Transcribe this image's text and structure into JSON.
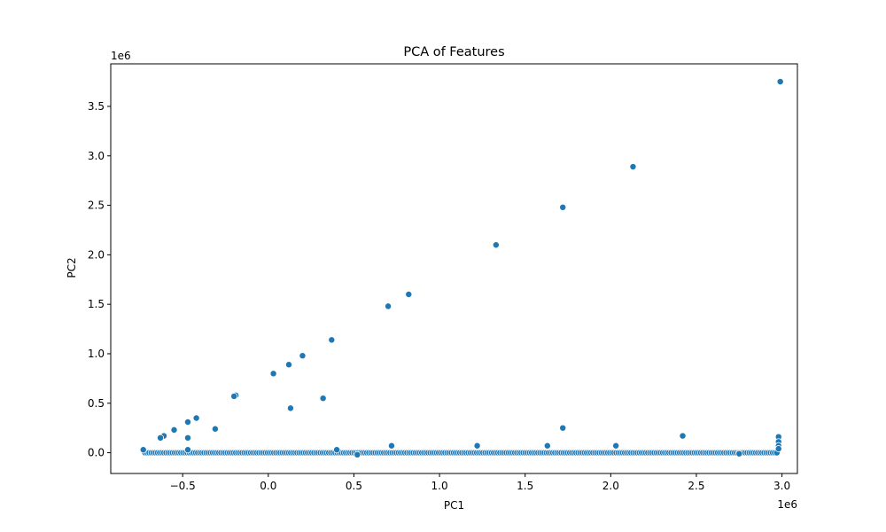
{
  "chart_data": {
    "type": "scatter",
    "title": "PCA of Features",
    "xlabel": "PC1",
    "ylabel": "PC2",
    "x_offset_text": "1e6",
    "y_offset_text": "1e6",
    "x_scale": 1000000,
    "y_scale": 1000000,
    "xlim": [
      -0.92,
      3.09
    ],
    "ylim": [
      -0.21,
      3.93
    ],
    "xticks": [
      -0.5,
      0.0,
      0.5,
      1.0,
      1.5,
      2.0,
      2.5,
      3.0
    ],
    "xtick_labels": [
      "−0.5",
      "0.0",
      "0.5",
      "1.0",
      "1.5",
      "2.0",
      "2.5",
      "3.0"
    ],
    "yticks": [
      0.0,
      0.5,
      1.0,
      1.5,
      2.0,
      2.5,
      3.0,
      3.5
    ],
    "ytick_labels": [
      "0.0",
      "0.5",
      "1.0",
      "1.5",
      "2.0",
      "2.5",
      "3.0",
      "3.5"
    ],
    "grid": false,
    "marker_color": "#1f77b4",
    "marker_edge_color": "#ffffff",
    "baseline_band": {
      "x_from": -0.72,
      "x_to": 2.97,
      "y": 0.0,
      "count": 300
    },
    "points": [
      {
        "x": 2.99,
        "y": 3.75
      },
      {
        "x": 2.13,
        "y": 2.89
      },
      {
        "x": 1.72,
        "y": 2.48
      },
      {
        "x": 1.33,
        "y": 2.1
      },
      {
        "x": 0.82,
        "y": 1.6
      },
      {
        "x": 0.7,
        "y": 1.48
      },
      {
        "x": 0.37,
        "y": 1.14
      },
      {
        "x": 0.2,
        "y": 0.98
      },
      {
        "x": 0.12,
        "y": 0.89
      },
      {
        "x": 0.03,
        "y": 0.8
      },
      {
        "x": -0.19,
        "y": 0.58
      },
      {
        "x": -0.2,
        "y": 0.57
      },
      {
        "x": -0.42,
        "y": 0.35
      },
      {
        "x": -0.47,
        "y": 0.31
      },
      {
        "x": -0.55,
        "y": 0.23
      },
      {
        "x": -0.61,
        "y": 0.17
      },
      {
        "x": -0.63,
        "y": 0.15
      },
      {
        "x": -0.31,
        "y": 0.24
      },
      {
        "x": -0.47,
        "y": 0.15
      },
      {
        "x": 0.13,
        "y": 0.45
      },
      {
        "x": 0.32,
        "y": 0.55
      },
      {
        "x": 1.72,
        "y": 0.25
      },
      {
        "x": 2.42,
        "y": 0.17
      },
      {
        "x": 2.98,
        "y": 0.16
      },
      {
        "x": 2.98,
        "y": 0.11
      },
      {
        "x": 2.98,
        "y": 0.07
      },
      {
        "x": 2.98,
        "y": 0.04
      },
      {
        "x": 1.22,
        "y": 0.07
      },
      {
        "x": 1.63,
        "y": 0.07
      },
      {
        "x": 2.03,
        "y": 0.07
      },
      {
        "x": 0.72,
        "y": 0.07
      },
      {
        "x": -0.73,
        "y": 0.03
      },
      {
        "x": -0.47,
        "y": 0.03
      },
      {
        "x": 0.4,
        "y": 0.03
      },
      {
        "x": 2.75,
        "y": -0.01
      },
      {
        "x": 0.52,
        "y": -0.02
      }
    ]
  }
}
